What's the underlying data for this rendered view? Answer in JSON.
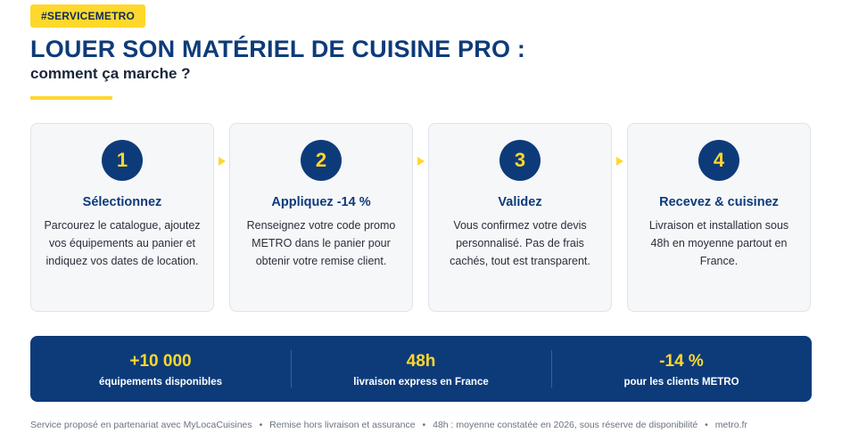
{
  "tag": "#SERVICEMETRO",
  "title": "LOUER SON MATÉRIEL DE CUISINE PRO :",
  "subtitle": "comment ça marche ?",
  "steps": [
    {
      "number": "1",
      "title": "Sélectionnez",
      "text": "Parcourez le catalogue, ajoutez vos équipements au panier et indiquez vos dates de location."
    },
    {
      "number": "2",
      "title": "Appliquez -14 %",
      "text": "Renseignez votre code promo METRO dans le panier pour obtenir votre remise client."
    },
    {
      "number": "3",
      "title": "Validez",
      "text": "Vous confirmez votre devis personnalisé. Pas de frais cachés, tout est transparent."
    },
    {
      "number": "4",
      "title": "Recevez & cuisinez",
      "text": "Livraison et installation sous 48h en moyenne partout en France."
    }
  ],
  "stats": [
    {
      "value": "+10 000",
      "label": "équipements disponibles"
    },
    {
      "value": "48h",
      "label": "livraison express en France"
    },
    {
      "value": "-14 %",
      "label": "pour les clients METRO"
    }
  ],
  "footer": {
    "items": [
      "Service proposé en partenariat avec MyLocaCuisines",
      "Remise hors livraison et assurance",
      "48h : moyenne constatée en 2026, sous réserve de disponibilité",
      "metro.fr"
    ],
    "separator": "•"
  },
  "colors": {
    "navy": "#0d3b7a",
    "yellow": "#ffd82c",
    "card_bg": "#f6f7f9"
  },
  "icons": [
    "chevron-right-icon"
  ]
}
